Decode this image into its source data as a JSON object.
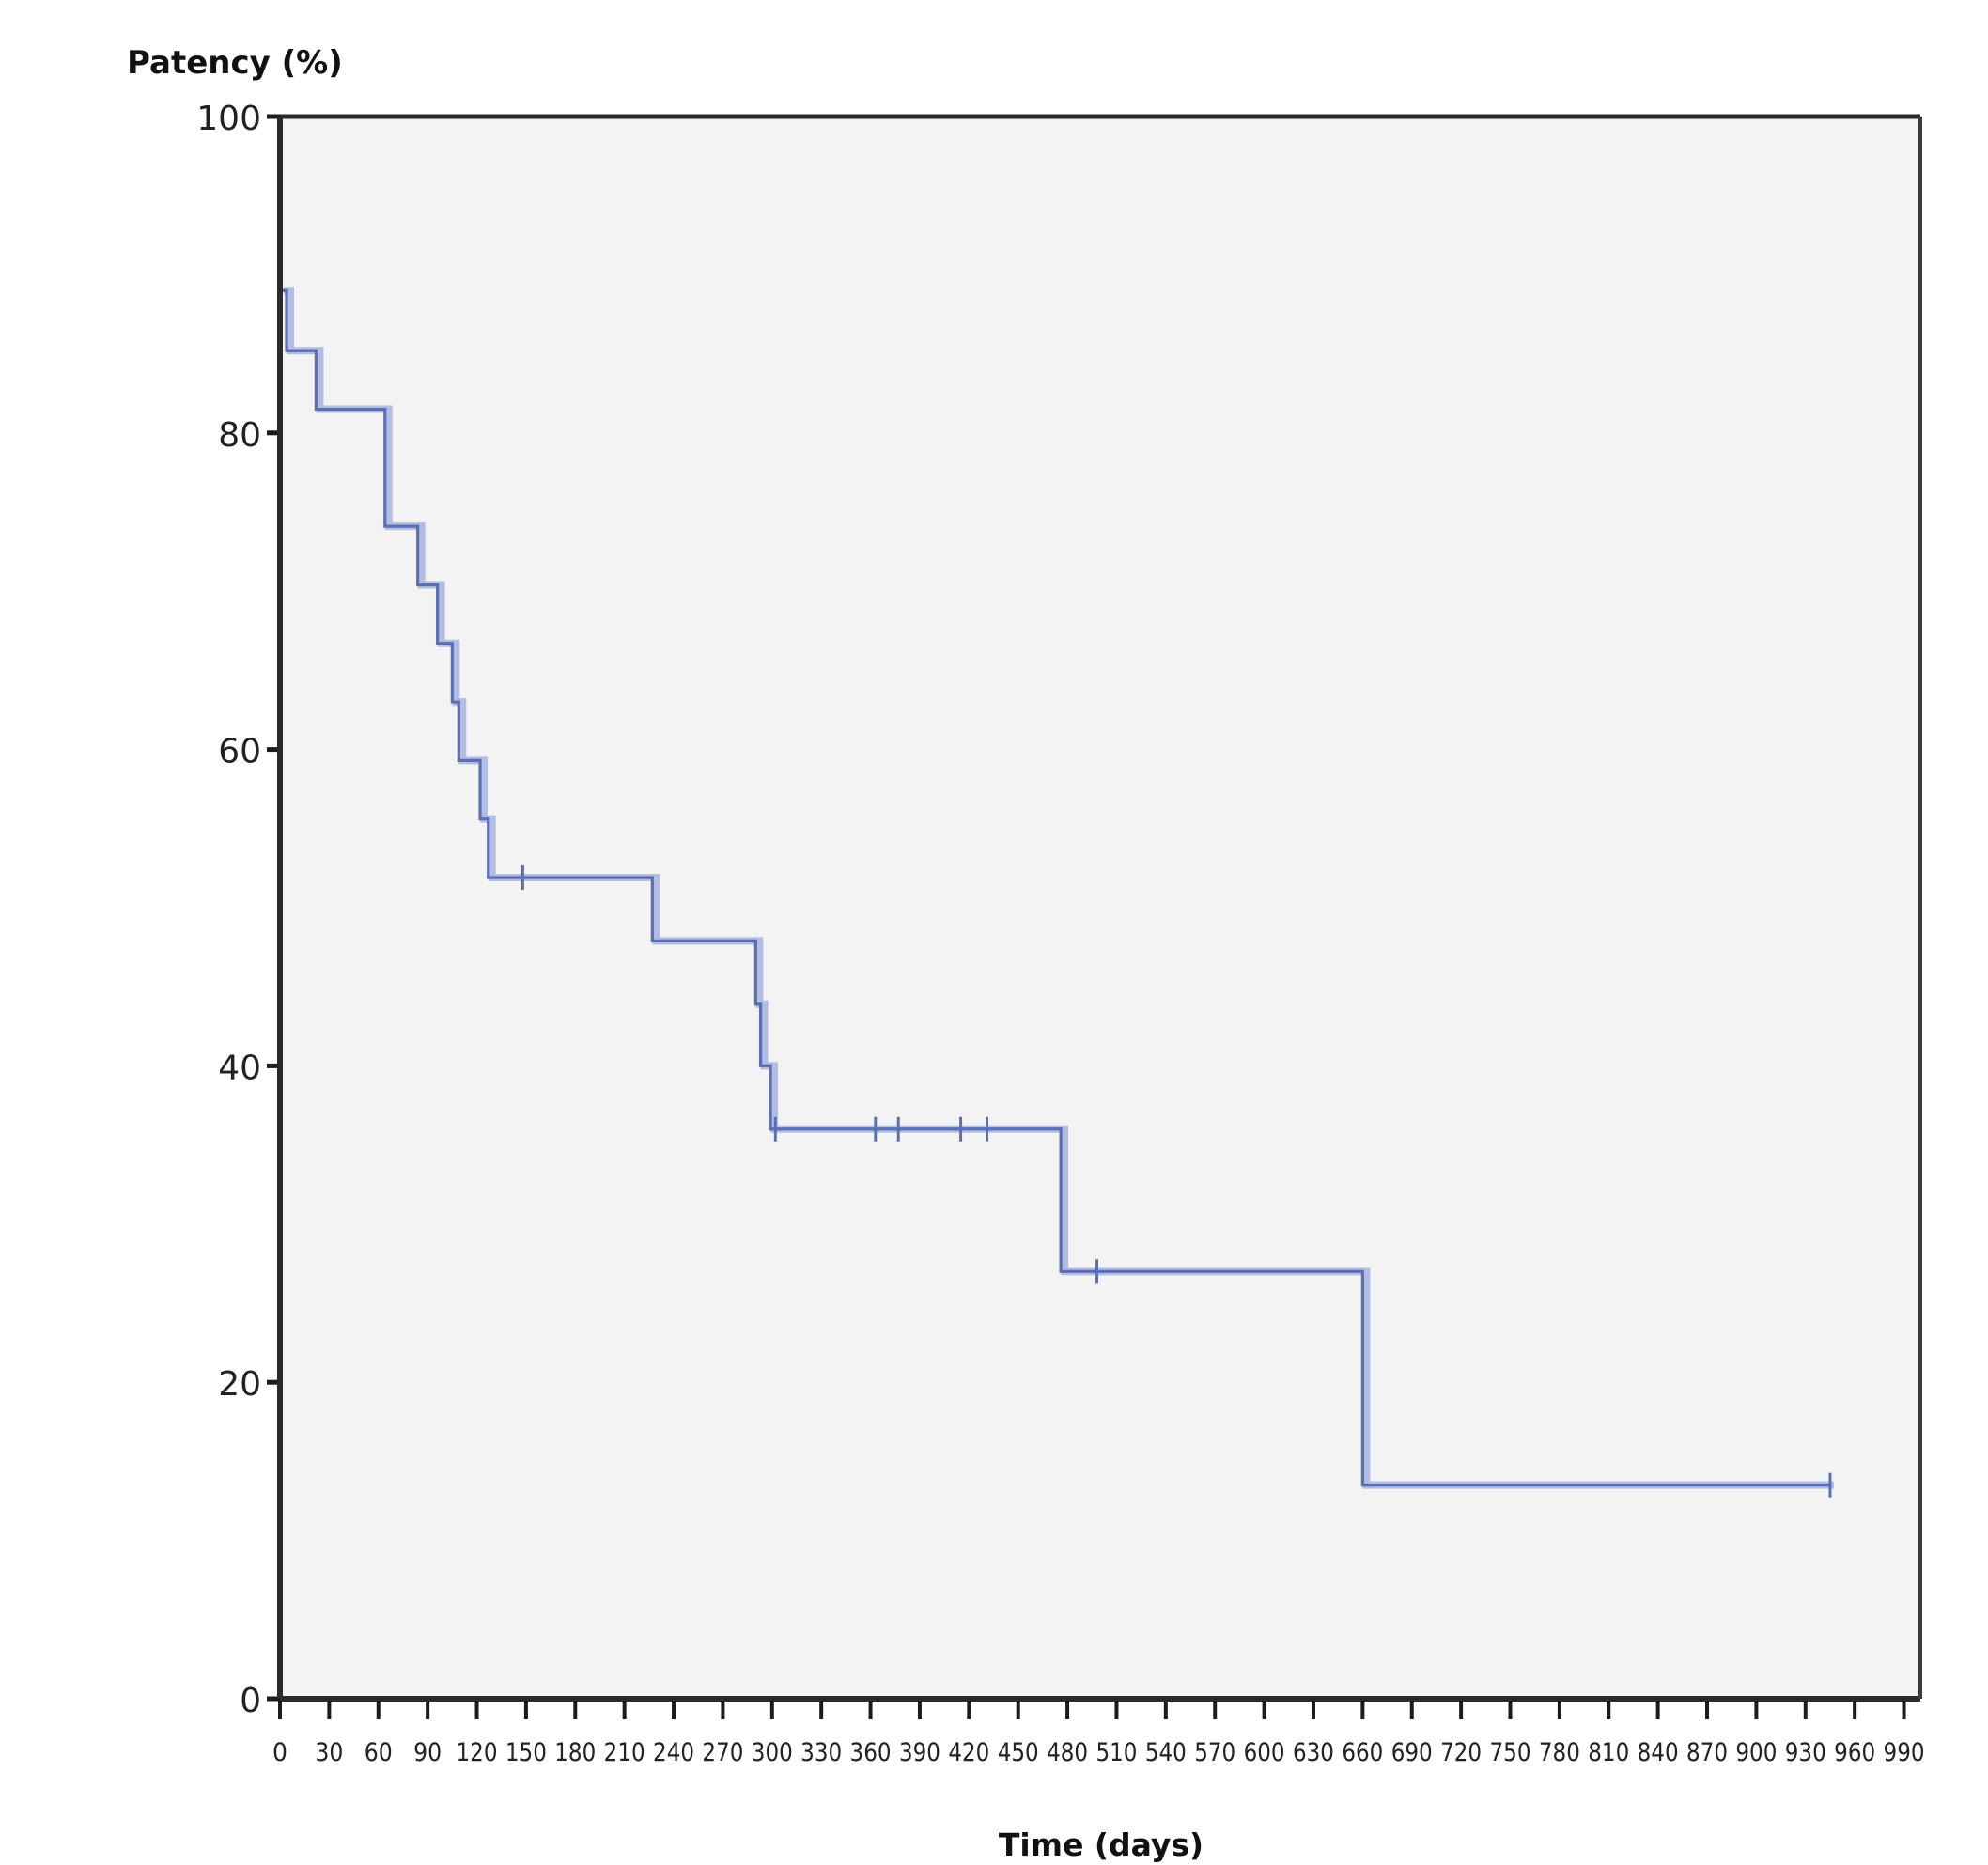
{
  "chart_data": {
    "type": "line",
    "subtype": "kaplan-meier-step",
    "title": "",
    "xlabel": "Time (days)",
    "ylabel": "Patency (%)",
    "xlim": [
      0,
      1000
    ],
    "ylim": [
      0,
      100
    ],
    "x_ticks": [
      0,
      30,
      60,
      90,
      120,
      150,
      180,
      210,
      240,
      270,
      300,
      330,
      360,
      390,
      420,
      450,
      480,
      510,
      540,
      570,
      600,
      630,
      660,
      690,
      720,
      750,
      780,
      810,
      840,
      870,
      900,
      930,
      960,
      990
    ],
    "y_ticks": [
      0,
      20,
      40,
      60,
      80,
      100
    ],
    "grid": false,
    "legend": "none",
    "background_color": "#f3f3f3",
    "line_color": "#5a6fb5",
    "series": [
      {
        "steps": [
          {
            "x": 0,
            "y": 89
          },
          {
            "x": 4,
            "y": 85.2
          },
          {
            "x": 22,
            "y": 81.5
          },
          {
            "x": 64,
            "y": 74.1
          },
          {
            "x": 84,
            "y": 70.4
          },
          {
            "x": 96,
            "y": 66.7
          },
          {
            "x": 105,
            "y": 63
          },
          {
            "x": 109,
            "y": 59.3
          },
          {
            "x": 122,
            "y": 55.6
          },
          {
            "x": 127,
            "y": 51.9
          },
          {
            "x": 227,
            "y": 47.9
          },
          {
            "x": 290,
            "y": 43.9
          },
          {
            "x": 293,
            "y": 40
          },
          {
            "x": 299,
            "y": 36
          },
          {
            "x": 476,
            "y": 27
          },
          {
            "x": 660,
            "y": 13.5
          }
        ],
        "end_x": 945,
        "censored": [
          {
            "x": 148,
            "y": 51.9
          },
          {
            "x": 302,
            "y": 36
          },
          {
            "x": 363,
            "y": 36
          },
          {
            "x": 377,
            "y": 36
          },
          {
            "x": 415,
            "y": 36
          },
          {
            "x": 431,
            "y": 36
          },
          {
            "x": 498,
            "y": 27
          },
          {
            "x": 945,
            "y": 13.5
          }
        ]
      }
    ]
  }
}
